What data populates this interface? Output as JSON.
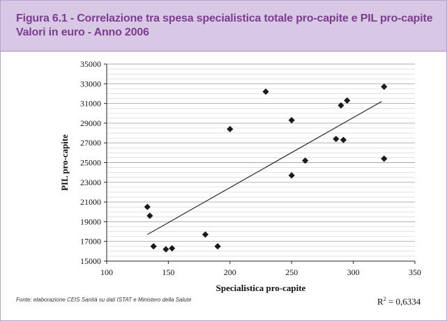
{
  "header": {
    "title_line1": "Figura 6.1 - Correlazione tra spesa specialistica totale pro-capite e PIL pro-capite",
    "title_line2": "Valori in euro -  Anno 2006"
  },
  "source_note": "Fonte: elaborazione CEIS Sanità su dati ISTAT e Ministero della Salute",
  "r_squared": {
    "label": "R",
    "exp": "2",
    "value": "= 0,6334"
  },
  "colors": {
    "header_bg": "#d9c7e6",
    "title_text": "#7b3d8e",
    "points": "#1a1a1a",
    "trendline": "#1a1a1a",
    "grid": "#cfcfcf"
  },
  "chart_data": {
    "type": "scatter",
    "xlabel": "Specialistica pro-capite",
    "ylabel": "PIL pro-capite",
    "xlim": [
      100,
      350
    ],
    "ylim": [
      15000,
      35000
    ],
    "xticks": [
      100,
      150,
      200,
      250,
      300,
      350
    ],
    "yticks": [
      15000,
      17000,
      19000,
      21000,
      23000,
      25000,
      27000,
      29000,
      31000,
      33000,
      35000
    ],
    "grid": "horizontal",
    "points": [
      {
        "x": 133,
        "y": 20500
      },
      {
        "x": 135,
        "y": 19600
      },
      {
        "x": 138,
        "y": 16500
      },
      {
        "x": 148,
        "y": 16200
      },
      {
        "x": 153,
        "y": 16300
      },
      {
        "x": 180,
        "y": 17700
      },
      {
        "x": 190,
        "y": 16500
      },
      {
        "x": 200,
        "y": 28400
      },
      {
        "x": 229,
        "y": 32200
      },
      {
        "x": 250,
        "y": 29300
      },
      {
        "x": 250,
        "y": 23700
      },
      {
        "x": 261,
        "y": 25200
      },
      {
        "x": 286,
        "y": 27400
      },
      {
        "x": 290,
        "y": 30800
      },
      {
        "x": 292,
        "y": 27300
      },
      {
        "x": 295,
        "y": 31300
      },
      {
        "x": 325,
        "y": 32700
      },
      {
        "x": 325,
        "y": 25400
      }
    ],
    "trendline": {
      "x0": 133,
      "y0": 17700,
      "x1": 323,
      "y1": 31200
    }
  }
}
